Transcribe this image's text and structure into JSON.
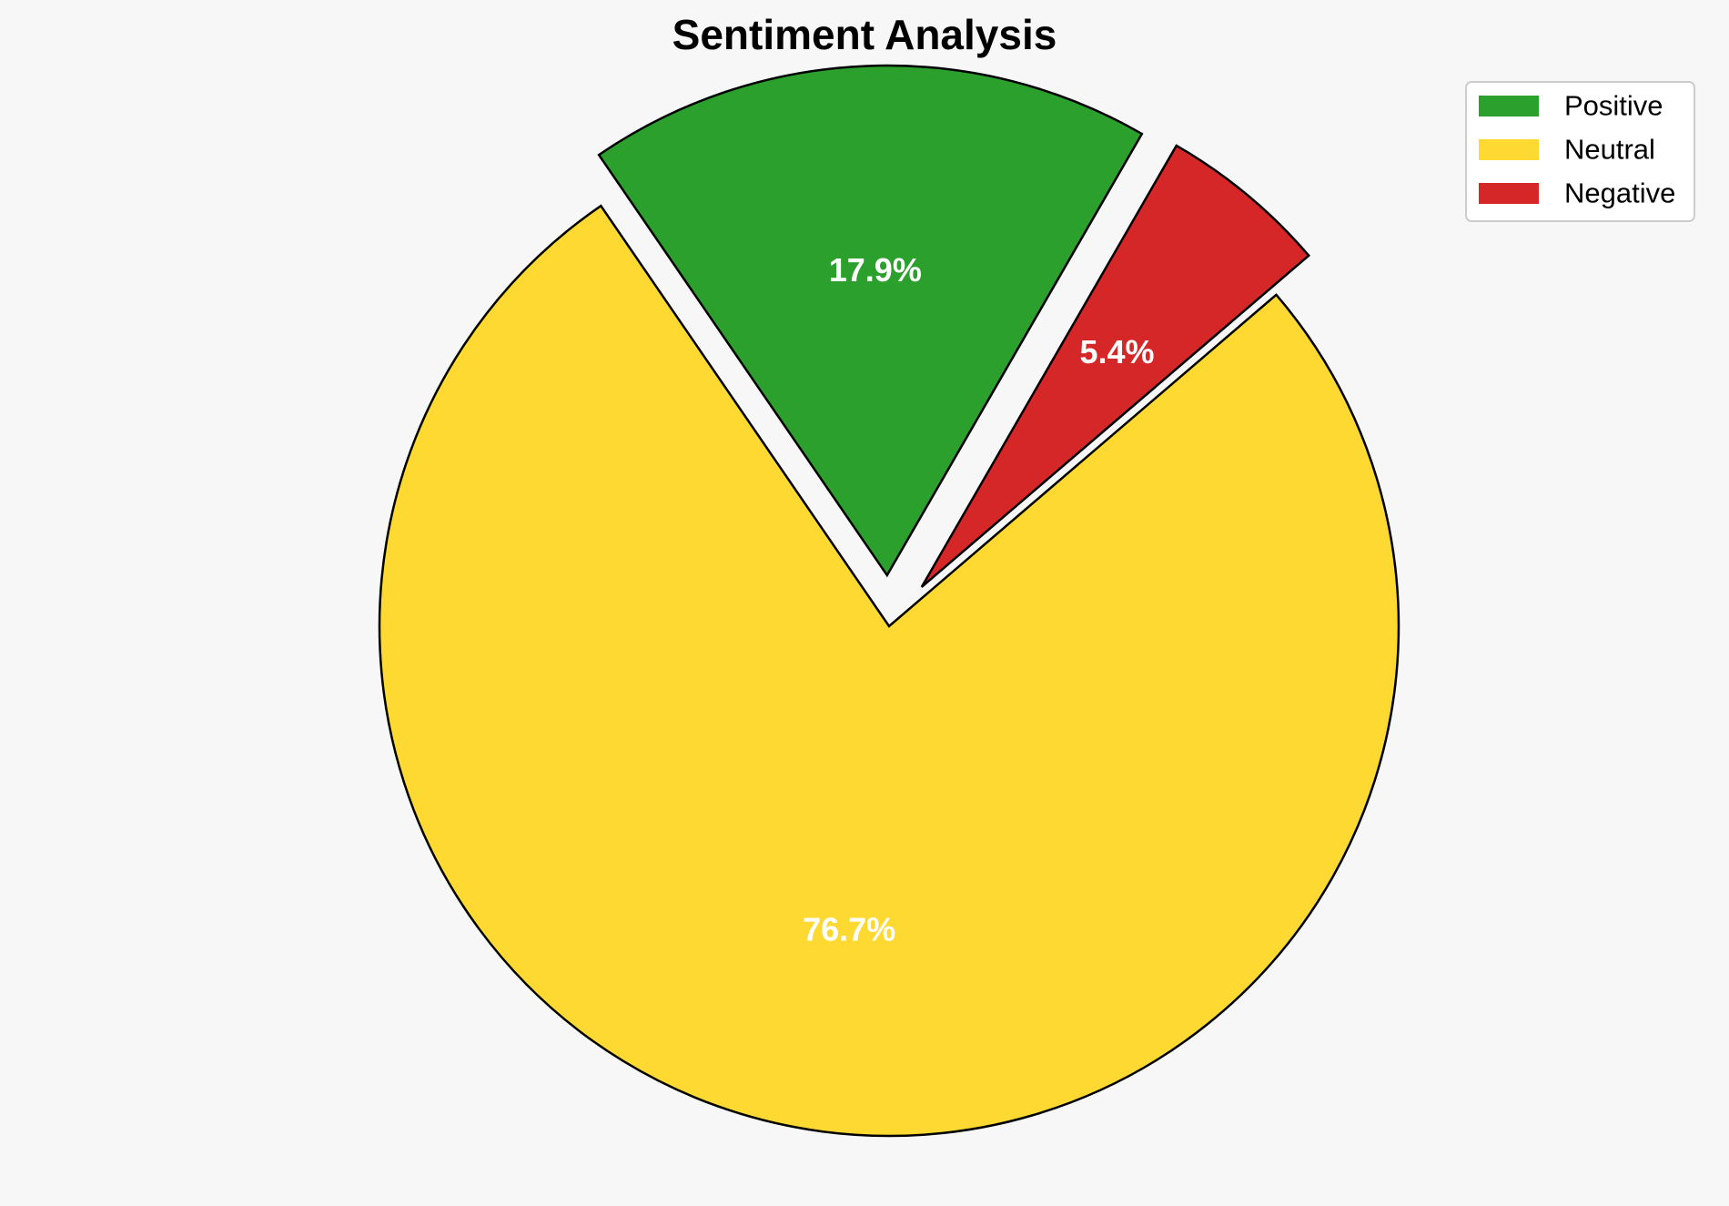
{
  "chart_data": {
    "type": "pie",
    "title": "Sentiment Analysis",
    "categories": [
      "Positive",
      "Neutral",
      "Negative"
    ],
    "values": [
      17.9,
      76.7,
      5.4
    ],
    "value_labels": [
      "17.9%",
      "76.7%",
      "5.4%"
    ],
    "exploded": [
      true,
      false,
      true
    ],
    "colors": [
      "#2ca02c",
      "#fed931",
      "#d62728"
    ],
    "legend_position": "top-right",
    "start_angle_deg": 60,
    "direction": "counterclockwise"
  },
  "style": {
    "background": "#f7f7f7",
    "edge_color": "#000000",
    "label_color": "#ffffff"
  }
}
